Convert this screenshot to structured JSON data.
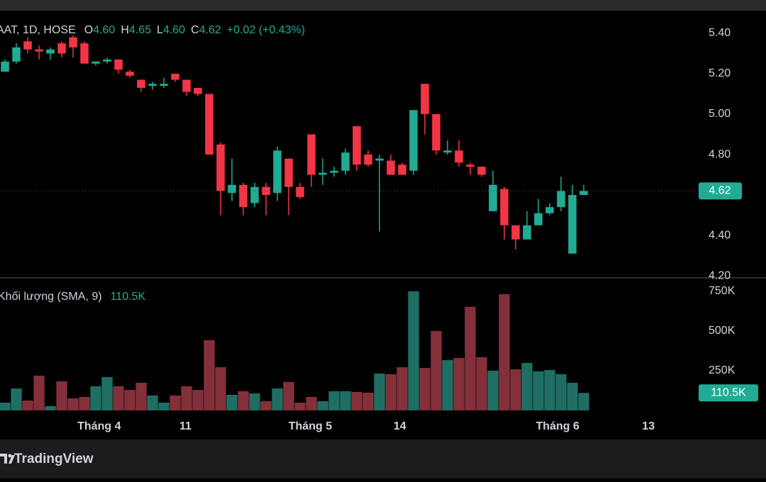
{
  "chart_data": [
    {
      "type": "candlestick",
      "legend": {
        "symbol": "AAT, 1D, HOSE",
        "fields": [
          {
            "label": "O",
            "value": "4.60"
          },
          {
            "label": "H",
            "value": "4.65"
          },
          {
            "label": "L",
            "value": "4.60"
          },
          {
            "label": "C",
            "value": "4.62"
          }
        ],
        "change": "+0.02 (+0.43%)"
      },
      "x": [
        0,
        1,
        2,
        3,
        4,
        5,
        6,
        7,
        8,
        9,
        10,
        11,
        12,
        13,
        14,
        15,
        16,
        17,
        18,
        19,
        20,
        21,
        22,
        23,
        24,
        25,
        26,
        27,
        28,
        29,
        30,
        31,
        32,
        33,
        34,
        35,
        36,
        37,
        38,
        39,
        40,
        41,
        42,
        43,
        44,
        45,
        46,
        47,
        48,
        49,
        50,
        51
      ],
      "open": [
        5.21,
        5.26,
        5.36,
        5.32,
        5.3,
        5.35,
        5.38,
        5.35,
        5.25,
        5.26,
        5.27,
        5.21,
        5.17,
        5.14,
        5.14,
        5.2,
        5.17,
        5.13,
        5.1,
        4.85,
        4.61,
        4.65,
        4.56,
        4.64,
        4.61,
        4.78,
        4.64,
        4.9,
        4.7,
        4.71,
        4.72,
        4.94,
        4.8,
        4.77,
        4.77,
        4.75,
        4.72,
        5.15,
        5.0,
        4.81,
        4.82,
        4.75,
        4.74,
        4.52,
        4.63,
        4.45,
        4.38,
        4.45,
        4.51,
        4.54,
        4.31,
        4.6
      ],
      "high": [
        5.27,
        5.35,
        5.38,
        5.34,
        5.33,
        5.36,
        5.39,
        5.36,
        5.26,
        5.28,
        5.27,
        5.22,
        5.17,
        5.16,
        5.18,
        5.2,
        5.17,
        5.13,
        5.1,
        4.86,
        4.78,
        4.66,
        4.66,
        4.66,
        4.84,
        4.78,
        4.66,
        4.9,
        4.78,
        4.74,
        4.83,
        4.94,
        4.82,
        4.8,
        4.8,
        4.76,
        5.02,
        5.15,
        5.0,
        4.87,
        4.87,
        4.76,
        4.74,
        4.72,
        4.64,
        4.45,
        4.52,
        4.58,
        4.56,
        4.69,
        4.65,
        4.65
      ],
      "low": [
        5.21,
        5.25,
        5.3,
        5.27,
        5.27,
        5.28,
        5.28,
        5.25,
        5.24,
        5.25,
        5.2,
        5.18,
        5.11,
        5.12,
        5.13,
        5.16,
        5.09,
        5.09,
        4.8,
        4.5,
        4.57,
        4.5,
        4.54,
        4.5,
        4.57,
        4.5,
        4.58,
        4.64,
        4.65,
        4.69,
        4.7,
        4.72,
        4.74,
        4.42,
        4.7,
        4.7,
        4.7,
        4.9,
        4.8,
        4.8,
        4.74,
        4.7,
        4.69,
        4.52,
        4.38,
        4.33,
        4.38,
        4.45,
        4.5,
        4.52,
        4.31,
        4.6
      ],
      "close": [
        5.26,
        5.33,
        5.32,
        5.31,
        5.32,
        5.3,
        5.33,
        5.25,
        5.26,
        5.27,
        5.22,
        5.19,
        5.13,
        5.15,
        5.15,
        5.17,
        5.11,
        5.1,
        4.8,
        4.62,
        4.65,
        4.54,
        4.64,
        4.6,
        4.82,
        4.64,
        4.59,
        4.7,
        4.71,
        4.72,
        4.81,
        4.75,
        4.75,
        4.78,
        4.7,
        4.7,
        5.02,
        5.0,
        4.82,
        4.82,
        4.76,
        4.74,
        4.7,
        4.65,
        4.45,
        4.38,
        4.45,
        4.51,
        4.54,
        4.62,
        4.6,
        4.62
      ],
      "up_color": "#22ab94",
      "down_color": "#f23645",
      "xlim": [
        -0.44,
        60.5
      ],
      "xticks": [
        {
          "value": 8.3,
          "label": "Tháng 4"
        },
        {
          "value": 15.9,
          "label": "11"
        },
        {
          "value": 26.9,
          "label": "Tháng 5"
        },
        {
          "value": 34.8,
          "label": "14"
        },
        {
          "value": 48.7,
          "label": "Tháng 6"
        },
        {
          "value": 56.7,
          "label": "13"
        }
      ],
      "ylim": [
        4.19,
        5.512
      ],
      "yticks": [
        {
          "value": 4.2,
          "label": "4.20"
        },
        {
          "value": 4.4,
          "label": "4.40"
        },
        {
          "value": 4.8,
          "label": "4.80"
        },
        {
          "value": 5.0,
          "label": "5.00"
        },
        {
          "value": 5.2,
          "label": "5.20"
        },
        {
          "value": 5.4,
          "label": "5.40"
        }
      ],
      "last_price": {
        "value": 4.62,
        "label": "4.62"
      }
    },
    {
      "type": "bar",
      "title": "Khối lượng (SMA, 9)",
      "values": [
        49000,
        138000,
        62000,
        219000,
        27000,
        183000,
        76000,
        85000,
        152000,
        210000,
        152000,
        129000,
        174000,
        94000,
        49000,
        94000,
        152000,
        129000,
        442000,
        272000,
        98000,
        121000,
        107000,
        58000,
        138000,
        179000,
        49000,
        85000,
        58000,
        121000,
        121000,
        116000,
        112000,
        232000,
        228000,
        272000,
        750000,
        268000,
        500000,
        317000,
        330000,
        652000,
        335000,
        250000,
        732000,
        259000,
        299000,
        246000,
        254000,
        228000,
        174000,
        110000
      ],
      "up_color": "#1f6e63",
      "down_color": "#83303a",
      "ylim": [
        0,
        830000
      ],
      "yticks": [
        {
          "value": 250000,
          "label": "250K"
        },
        {
          "value": 500000,
          "label": "500K"
        },
        {
          "value": 750000,
          "label": "750K"
        }
      ],
      "sma": {
        "value": 110500,
        "label": "110.5K"
      }
    }
  ],
  "footer": {
    "brand": "TradingView"
  }
}
